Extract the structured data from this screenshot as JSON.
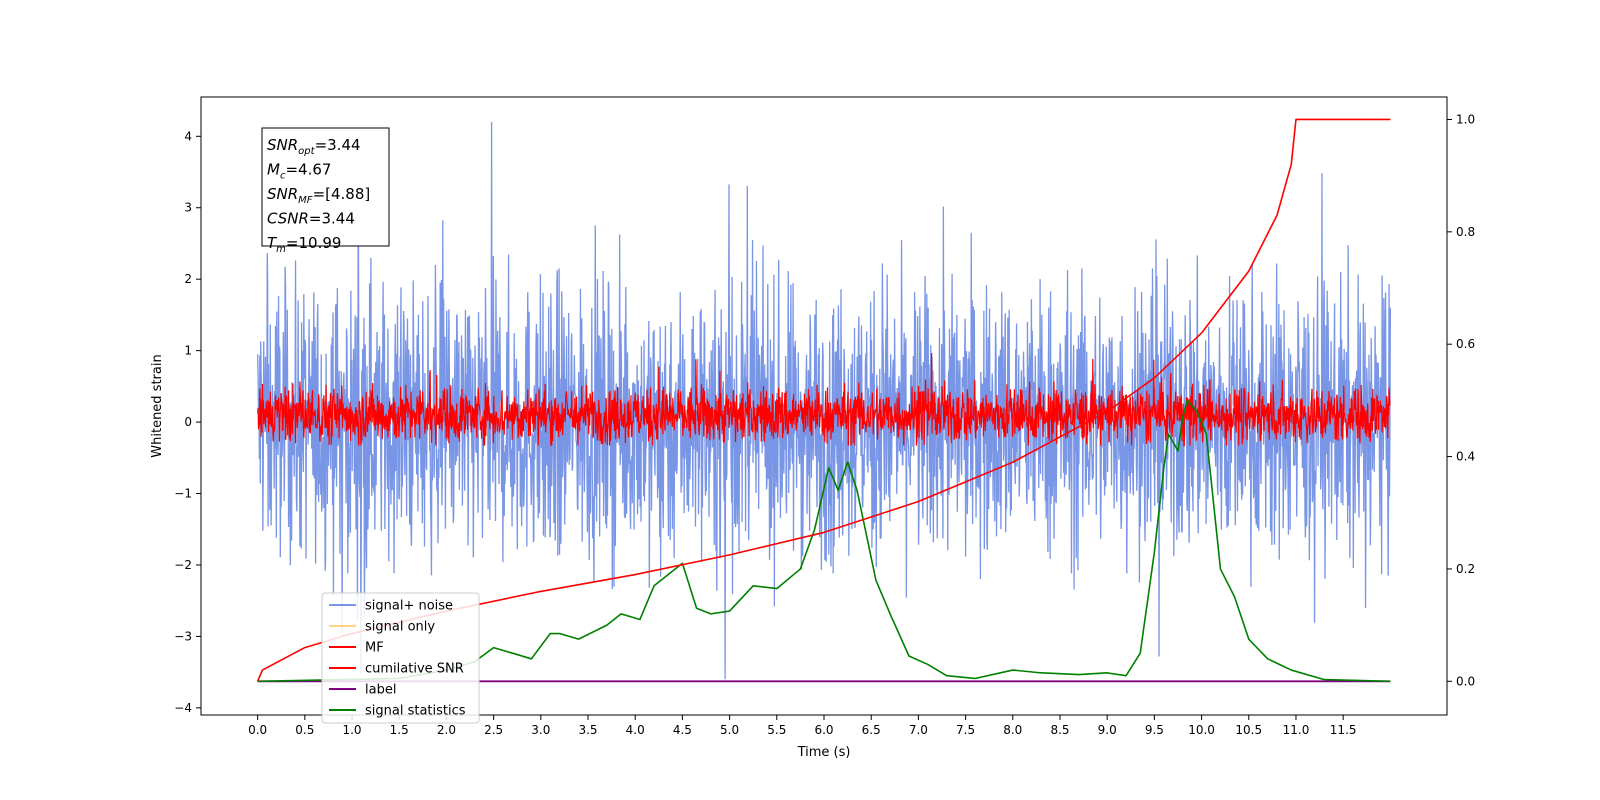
{
  "chart_data": {
    "type": "line",
    "xlabel": "Time (s)",
    "ylabel": "Whitened strain",
    "xlim": [
      -0.6,
      12.6
    ],
    "ylim": [
      -4.1,
      4.55
    ],
    "y2lim": [
      -0.06,
      1.04
    ],
    "x_ticks": [
      "0.0",
      "0.5",
      "1.0",
      "1.5",
      "2.0",
      "2.5",
      "3.0",
      "3.5",
      "4.0",
      "4.5",
      "5.0",
      "5.5",
      "6.0",
      "6.5",
      "7.0",
      "7.5",
      "8.0",
      "8.5",
      "9.0",
      "9.5",
      "10.0",
      "10.5",
      "11.0",
      "11.5"
    ],
    "y_ticks": [
      "−4",
      "−3",
      "−2",
      "−1",
      "0",
      "1",
      "2",
      "3",
      "4"
    ],
    "y2_ticks": [
      "0.0",
      "0.2",
      "0.4",
      "0.6",
      "0.8",
      "1.0"
    ],
    "annotation": [
      {
        "name": "SNR",
        "sub": "opt",
        "value": "=3.44"
      },
      {
        "name": "M",
        "sub": "c",
        "value": "=4.67"
      },
      {
        "name": "SNR",
        "sub": "MF",
        "value": "=[4.88]"
      },
      {
        "name": "CSNR",
        "sub": "",
        "value": "=3.44"
      },
      {
        "name": "T",
        "sub": "m",
        "value": "=10.99"
      }
    ],
    "legend_position": "lower-left",
    "series": [
      {
        "name": "signal+ noise",
        "color": "#7895e6",
        "axis": "left",
        "summary": "noise band, roughly -2.2 to 2.2 with spikes to 4.2, t=0 to 12"
      },
      {
        "name": "signal only",
        "color": "#ffd27f",
        "axis": "left",
        "summary": "not visible behind other traces"
      },
      {
        "name": "MF",
        "color": "#ff0000",
        "axis": "left",
        "summary": "band roughly -0.3 to 0.55 with spikes to 1.0, t=0 to 12"
      },
      {
        "name": "cumilative SNR",
        "color": "#ff0000",
        "axis": "right",
        "x": [
          0.0,
          0.05,
          0.5,
          1.0,
          2.0,
          3.0,
          4.0,
          5.0,
          6.0,
          7.0,
          7.5,
          8.0,
          8.5,
          9.0,
          9.5,
          10.0,
          10.5,
          10.8,
          10.95,
          11.0,
          12.0
        ],
        "y": [
          0.0,
          0.02,
          0.06,
          0.085,
          0.125,
          0.16,
          0.19,
          0.225,
          0.265,
          0.32,
          0.355,
          0.39,
          0.435,
          0.48,
          0.54,
          0.62,
          0.73,
          0.83,
          0.92,
          1.0,
          1.0
        ]
      },
      {
        "name": "label",
        "color": "#800080",
        "axis": "right",
        "x": [
          0.0,
          12.0
        ],
        "y": [
          0.0,
          0.0
        ]
      },
      {
        "name": "signal statistics",
        "color": "#008000",
        "axis": "right",
        "x": [
          0.0,
          1.5,
          2.0,
          2.3,
          2.5,
          2.7,
          2.9,
          3.1,
          3.2,
          3.4,
          3.7,
          3.85,
          4.05,
          4.2,
          4.35,
          4.5,
          4.65,
          4.8,
          5.0,
          5.25,
          5.5,
          5.75,
          5.9,
          6.05,
          6.15,
          6.25,
          6.35,
          6.45,
          6.55,
          6.7,
          6.9,
          7.1,
          7.3,
          7.6,
          8.0,
          8.3,
          8.7,
          9.0,
          9.2,
          9.35,
          9.5,
          9.6,
          9.65,
          9.75,
          9.8,
          9.85,
          9.95,
          10.05,
          10.2,
          10.35,
          10.5,
          10.7,
          10.95,
          11.3,
          12.0
        ],
        "y": [
          0.0,
          0.005,
          0.02,
          0.035,
          0.06,
          0.05,
          0.04,
          0.085,
          0.085,
          0.075,
          0.1,
          0.12,
          0.11,
          0.17,
          0.19,
          0.21,
          0.13,
          0.12,
          0.125,
          0.17,
          0.165,
          0.2,
          0.27,
          0.38,
          0.34,
          0.39,
          0.34,
          0.26,
          0.18,
          0.12,
          0.045,
          0.03,
          0.01,
          0.005,
          0.02,
          0.015,
          0.012,
          0.015,
          0.01,
          0.05,
          0.23,
          0.38,
          0.44,
          0.41,
          0.47,
          0.5,
          0.48,
          0.44,
          0.2,
          0.15,
          0.075,
          0.04,
          0.02,
          0.003,
          0.0
        ]
      }
    ]
  }
}
